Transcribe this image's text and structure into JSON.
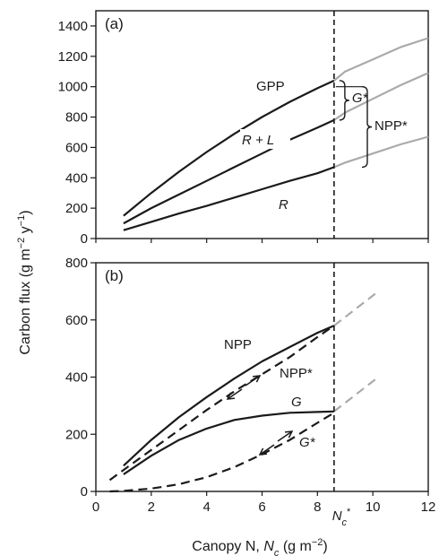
{
  "chart_data": [
    {
      "panel": "(a)",
      "type": "line",
      "xlim": [
        0,
        12
      ],
      "ylim": [
        0,
        1500
      ],
      "x_ticks": [],
      "y_ticks": [
        0,
        200,
        400,
        600,
        800,
        1000,
        1200,
        1400
      ],
      "grid": false,
      "series": [
        {
          "name": "GPP",
          "color": "#1a1a1a",
          "dash": false,
          "x": [
            1,
            2,
            3,
            4,
            5,
            6,
            7,
            8,
            8.6
          ],
          "y": [
            150,
            300,
            440,
            570,
            690,
            800,
            900,
            990,
            1040
          ]
        },
        {
          "name": "R + L",
          "color": "#1a1a1a",
          "dash": false,
          "x": [
            1,
            2,
            3,
            4,
            5,
            6,
            7,
            8,
            8.6
          ],
          "y": [
            100,
            200,
            290,
            380,
            470,
            560,
            650,
            730,
            780
          ]
        },
        {
          "name": "R",
          "color": "#1a1a1a",
          "dash": false,
          "x": [
            1,
            2,
            3,
            4,
            5,
            6,
            7,
            8,
            8.6
          ],
          "y": [
            55,
            110,
            165,
            215,
            270,
            325,
            380,
            430,
            470
          ]
        },
        {
          "name": "",
          "color": "#aaaaaa",
          "dash": false,
          "x": [
            8.6,
            9,
            10,
            11,
            12
          ],
          "y": [
            1040,
            1100,
            1180,
            1260,
            1320
          ]
        },
        {
          "name": "",
          "color": "#aaaaaa",
          "dash": false,
          "x": [
            8.6,
            9,
            10,
            11,
            12
          ],
          "y": [
            780,
            830,
            920,
            1010,
            1090
          ]
        },
        {
          "name": "",
          "color": "#aaaaaa",
          "dash": false,
          "x": [
            8.6,
            9,
            10,
            11,
            12
          ],
          "y": [
            470,
            500,
            560,
            620,
            670
          ]
        }
      ],
      "vline": {
        "x": 8.6,
        "style": "dashed"
      },
      "annotations": {
        "g_star": "G*",
        "npp_star": "NPP*"
      }
    },
    {
      "panel": "(b)",
      "type": "line",
      "xlim": [
        0,
        12
      ],
      "ylim": [
        0,
        800
      ],
      "x_ticks": [
        0,
        2,
        4,
        6,
        8,
        10,
        12
      ],
      "y_ticks": [
        0,
        200,
        400,
        600,
        800
      ],
      "grid": false,
      "series": [
        {
          "name": "NPP",
          "color": "#1a1a1a",
          "dash": false,
          "x": [
            1,
            2,
            3,
            4,
            5,
            6,
            7,
            8,
            8.6
          ],
          "y": [
            90,
            180,
            260,
            330,
            395,
            455,
            505,
            555,
            580
          ]
        },
        {
          "name": "NPP*",
          "color": "#1a1a1a",
          "dash": true,
          "x": [
            0.5,
            1,
            2,
            3,
            4,
            5,
            6,
            7,
            8,
            8.6
          ],
          "y": [
            40,
            75,
            145,
            215,
            285,
            350,
            410,
            470,
            540,
            580
          ]
        },
        {
          "name": "G",
          "color": "#1a1a1a",
          "dash": false,
          "x": [
            1,
            2,
            3,
            4,
            5,
            6,
            7,
            8,
            8.6
          ],
          "y": [
            60,
            125,
            180,
            220,
            250,
            265,
            275,
            278,
            280
          ]
        },
        {
          "name": "G*",
          "color": "#1a1a1a",
          "dash": true,
          "x": [
            0.5,
            1,
            2,
            3,
            4,
            5,
            6,
            7,
            8,
            8.6
          ],
          "y": [
            0,
            2,
            10,
            25,
            50,
            85,
            130,
            180,
            240,
            275
          ]
        },
        {
          "name": "",
          "color": "#aaaaaa",
          "dash": true,
          "x": [
            8.6,
            10.2
          ],
          "y": [
            580,
            700
          ]
        },
        {
          "name": "",
          "color": "#aaaaaa",
          "dash": true,
          "x": [
            8.6,
            10.2
          ],
          "y": [
            280,
            400
          ]
        }
      ],
      "vline": {
        "x": 8.6,
        "style": "dashed"
      }
    }
  ],
  "shared": {
    "ylabel": "Carbon flux (g m⁻² y⁻¹)",
    "xlabel": "Canopy N, Nₑ (g m⁻²)",
    "xlabel_parts": [
      "Canopy N, ",
      "N",
      "c",
      " (g m",
      "−2",
      ")"
    ],
    "ylabel_parts": [
      "Carbon flux (g m",
      "−2",
      " y",
      "−1",
      ")"
    ],
    "nc_star_parts": [
      "N",
      "c",
      "*"
    ]
  }
}
